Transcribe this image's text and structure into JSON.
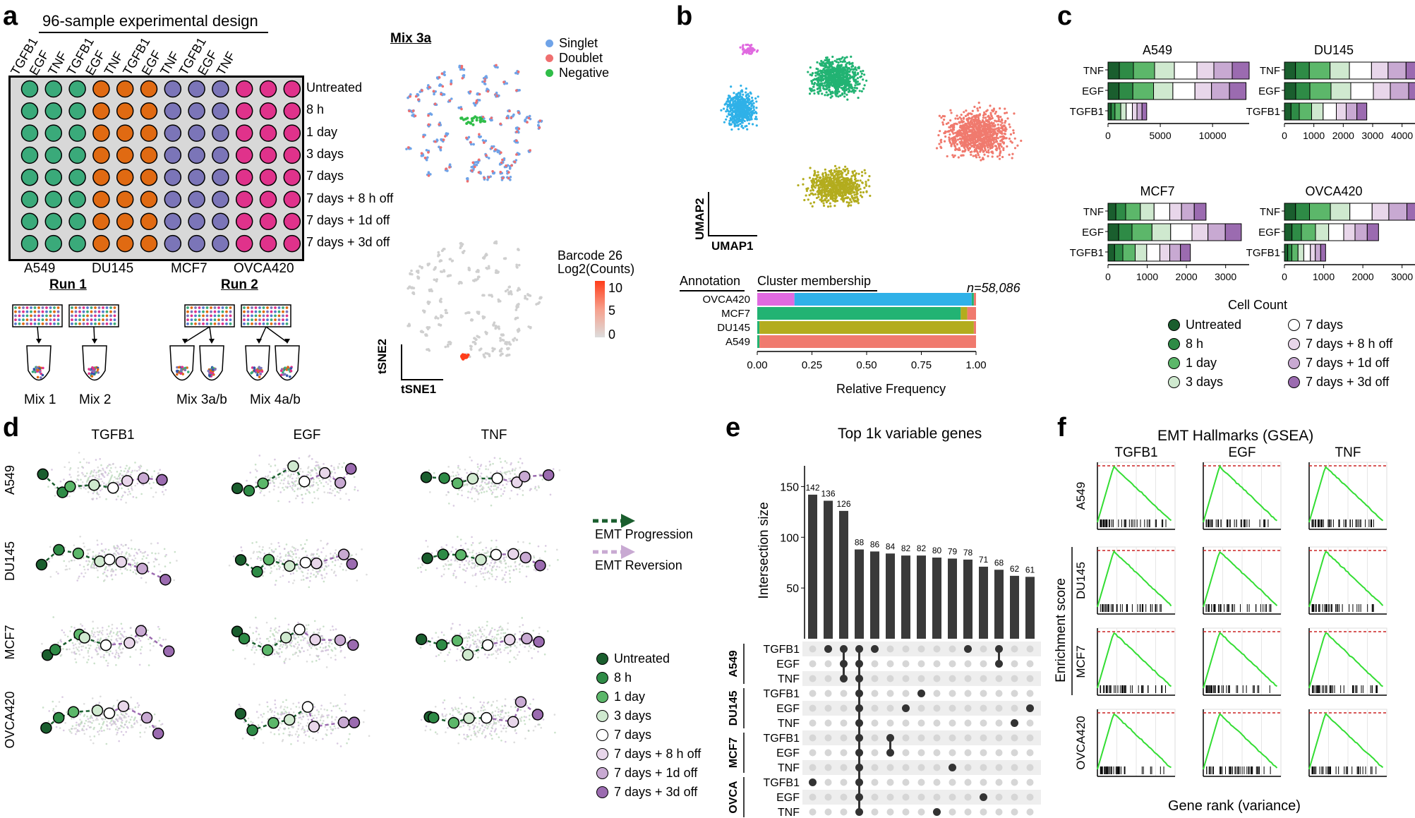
{
  "colors": {
    "green_dark": "#1a5e2e",
    "green_mid": "#2e8b46",
    "green_light": "#5cb76a",
    "green_pale": "#cfe9cf",
    "white": "#ffffff",
    "purple_pale": "#e8d6ea",
    "purple_light": "#c8a9d2",
    "purple_mid": "#9b6bb0",
    "teal": "#3aaa7a",
    "orange": "#e06a12",
    "lavender": "#7b75b8",
    "magenta": "#e0328b",
    "singlet": "#6fa3e8",
    "doublet": "#ef6f6f",
    "negative": "#2fbd48",
    "umap_pink": "#e06ae0",
    "umap_blue": "#2fb1e8",
    "umap_green": "#22b373",
    "umap_red": "#f07a6e",
    "umap_olive": "#b3ac1e",
    "bar_dark": "#3a3a3a",
    "gsea_line": "#33dd33",
    "gsea_dash": "#cc2222"
  },
  "panel_a": {
    "letter": "a",
    "title": "96-sample experimental design",
    "column_headers": [
      "TGFB1",
      "EGF",
      "TNF",
      "TGFB1",
      "EGF",
      "TNF",
      "TGFB1",
      "EGF",
      "TNF",
      "TGFB1",
      "EGF",
      "TNF"
    ],
    "row_labels": [
      "Untreated",
      "8 h",
      "1 day",
      "3 days",
      "7 days",
      "7 days + 8 h off",
      "7 days + 1d off",
      "7 days + 3d off"
    ],
    "cell_lines": [
      "A549",
      "DU145",
      "MCF7",
      "OVCA420"
    ],
    "runs": [
      "Run 1",
      "Run 2"
    ],
    "mixes": [
      "Mix 1",
      "Mix 2",
      "Mix 3a/b",
      "Mix 4a/b"
    ],
    "mix_title": "Mix 3a",
    "tsne_legend": [
      "Singlet",
      "Doublet",
      "Negative"
    ],
    "barcode_title_1": "Barcode 26",
    "barcode_title_2": "Log2(Counts)",
    "barcode_ticks": [
      "10",
      "5",
      "0"
    ],
    "tsne_axes": [
      "tSNE2",
      "tSNE1"
    ]
  },
  "panel_b": {
    "letter": "b",
    "umap_axes": [
      "UMAP2",
      "UMAP1"
    ],
    "annotation_label": "Annotation",
    "cluster_label": "Cluster membership",
    "n_label": "n=58,086",
    "xlabel": "Relative Frequency"
  },
  "panel_c": {
    "letter": "c",
    "xlabel": "Cell Count",
    "legend": [
      "Untreated",
      "8 h",
      "1 day",
      "3 days",
      "7 days",
      "7 days + 8 h off",
      "7 days + 1d off",
      "7 days + 3d off"
    ]
  },
  "panel_d": {
    "letter": "d",
    "col_titles": [
      "TGFB1",
      "EGF",
      "TNF"
    ],
    "row_titles": [
      "A549",
      "DU145",
      "MCF7",
      "OVCA420"
    ],
    "arrows": [
      "EMT Progression",
      "EMT Reversion"
    ],
    "legend": [
      "Untreated",
      "8 h",
      "1 day",
      "3 days",
      "7 days",
      "7 days + 8 h off",
      "7 days + 1d off",
      "7 days + 3d off"
    ]
  },
  "panel_e": {
    "letter": "e",
    "title": "Top 1k variable genes",
    "ylabel": "Intersection size",
    "group_labels": [
      "A549",
      "DU145",
      "MCF7",
      "OVCA"
    ],
    "row_labels": [
      "TGFB1",
      "EGF",
      "TNF",
      "TGFB1",
      "EGF",
      "TNF",
      "TGFB1",
      "EGF",
      "TNF",
      "TGFB1",
      "EGF",
      "TNF"
    ]
  },
  "panel_f": {
    "letter": "f",
    "title": "EMT Hallmarks (GSEA)",
    "col_titles": [
      "TGFB1",
      "EGF",
      "TNF"
    ],
    "row_titles": [
      "A549",
      "DU145",
      "MCF7",
      "OVCA420"
    ],
    "ylabel": "Enrichment score",
    "xlabel": "Gene rank (variance)"
  },
  "chart_data": [
    {
      "type": "bar",
      "title": "",
      "orientation": "horizontal-stacked",
      "categories": [
        "OVCA420",
        "MCF7",
        "DU145",
        "A549"
      ],
      "xlabel": "Relative Frequency",
      "xlim": [
        0,
        1
      ],
      "xticks": [
        "0.00",
        "0.25",
        "0.50",
        "0.75",
        "1.00"
      ],
      "series": [
        {
          "values": [
            0.17,
            0.0,
            0.0,
            0.0
          ]
        },
        {
          "values": [
            0.81,
            0.0,
            0.0,
            0.0
          ]
        },
        {
          "values": [
            0.01,
            0.93,
            0.01,
            0.01
          ]
        },
        {
          "values": [
            0.0,
            0.03,
            0.98,
            0.0
          ]
        },
        {
          "values": [
            0.01,
            0.04,
            0.01,
            0.99
          ]
        }
      ]
    },
    {
      "type": "bar",
      "title": "A549",
      "orientation": "horizontal-stacked",
      "categories": [
        "TNF",
        "EGF",
        "TGFB1"
      ],
      "xticks": [
        "0",
        "5000",
        "10000"
      ],
      "xlim": [
        0,
        13500
      ],
      "totals": [
        13500,
        13200,
        3700
      ]
    },
    {
      "type": "bar",
      "title": "DU145",
      "orientation": "horizontal-stacked",
      "categories": [
        "TNF",
        "EGF",
        "TGFB1"
      ],
      "xticks": [
        "0",
        "1000",
        "2000",
        "3000",
        "4000"
      ],
      "xlim": [
        0,
        4800
      ],
      "totals": [
        4700,
        4800,
        2800
      ]
    },
    {
      "type": "bar",
      "title": "MCF7",
      "orientation": "horizontal-stacked",
      "categories": [
        "TNF",
        "EGF",
        "TGFB1"
      ],
      "xticks": [
        "0",
        "1000",
        "2000",
        "3000"
      ],
      "xlim": [
        0,
        3600
      ],
      "totals": [
        2500,
        3400,
        2100
      ]
    },
    {
      "type": "bar",
      "title": "OVCA420",
      "orientation": "horizontal-stacked",
      "categories": [
        "TNF",
        "EGF",
        "TGFB1"
      ],
      "xticks": [
        "0",
        "1000",
        "2000",
        "3000"
      ],
      "xlim": [
        0,
        3600
      ],
      "totals": [
        3550,
        2400,
        1050
      ]
    },
    {
      "type": "bar",
      "title": "Top 1k variable genes",
      "ylabel": "Intersection size",
      "ylim": [
        0,
        150
      ],
      "yticks": [
        "50",
        "100",
        "150"
      ],
      "values": [
        142,
        136,
        126,
        88,
        86,
        84,
        82,
        82,
        80,
        79,
        78,
        71,
        68,
        62,
        61
      ],
      "dots": [
        [
          9
        ],
        [
          0
        ],
        [
          0,
          1,
          2
        ],
        [
          0,
          1,
          2,
          3,
          4,
          5,
          6,
          7,
          8,
          9,
          10,
          11
        ],
        [
          0
        ],
        [
          6,
          7
        ],
        [
          4
        ],
        [
          3
        ],
        [
          11
        ],
        [
          8
        ],
        [
          0
        ],
        [
          10
        ],
        [
          0,
          1
        ],
        [
          5
        ],
        [
          4
        ]
      ]
    }
  ]
}
